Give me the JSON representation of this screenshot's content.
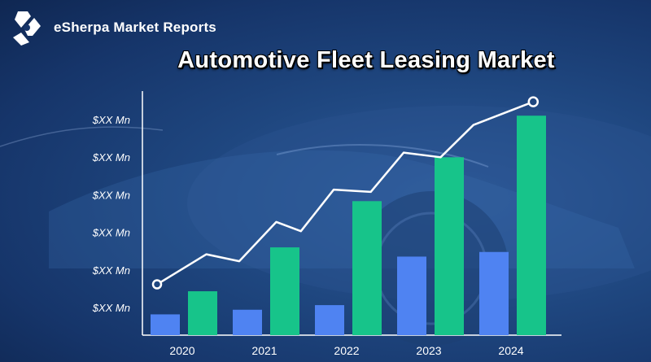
{
  "brand": {
    "name": "eSherpa Market Reports",
    "logo_icon": "esherpa-logo-icon"
  },
  "colors": {
    "bar_blue": "#4f83f2",
    "bar_green": "#17c48a",
    "line": "#ffffff"
  },
  "chart_data": {
    "type": "bar",
    "title": "Automotive Fleet Leasing Market",
    "categories": [
      "2020",
      "2021",
      "2022",
      "2023",
      "2024"
    ],
    "y_tick_labels": [
      "$XX Mn",
      "$XX Mn",
      "$XX Mn",
      "$XX Mn",
      "$XX Mn",
      "$XX Mn"
    ],
    "ylim": [
      0,
      100
    ],
    "grid": false,
    "series": [
      {
        "values": [
          9,
          11,
          13,
          34,
          36
        ],
        "color": "#4f83f2"
      },
      {
        "values": [
          19,
          38,
          58,
          77,
          95
        ],
        "color": "#17c48a"
      }
    ],
    "trend_line": {
      "x": [
        0,
        0.6,
        1.0,
        1.45,
        1.75,
        2.15,
        2.6,
        3.0,
        3.45,
        3.85,
        4.3
      ],
      "values": [
        22,
        35,
        32,
        49,
        45,
        63,
        62,
        79,
        77,
        91,
        101
      ]
    }
  }
}
